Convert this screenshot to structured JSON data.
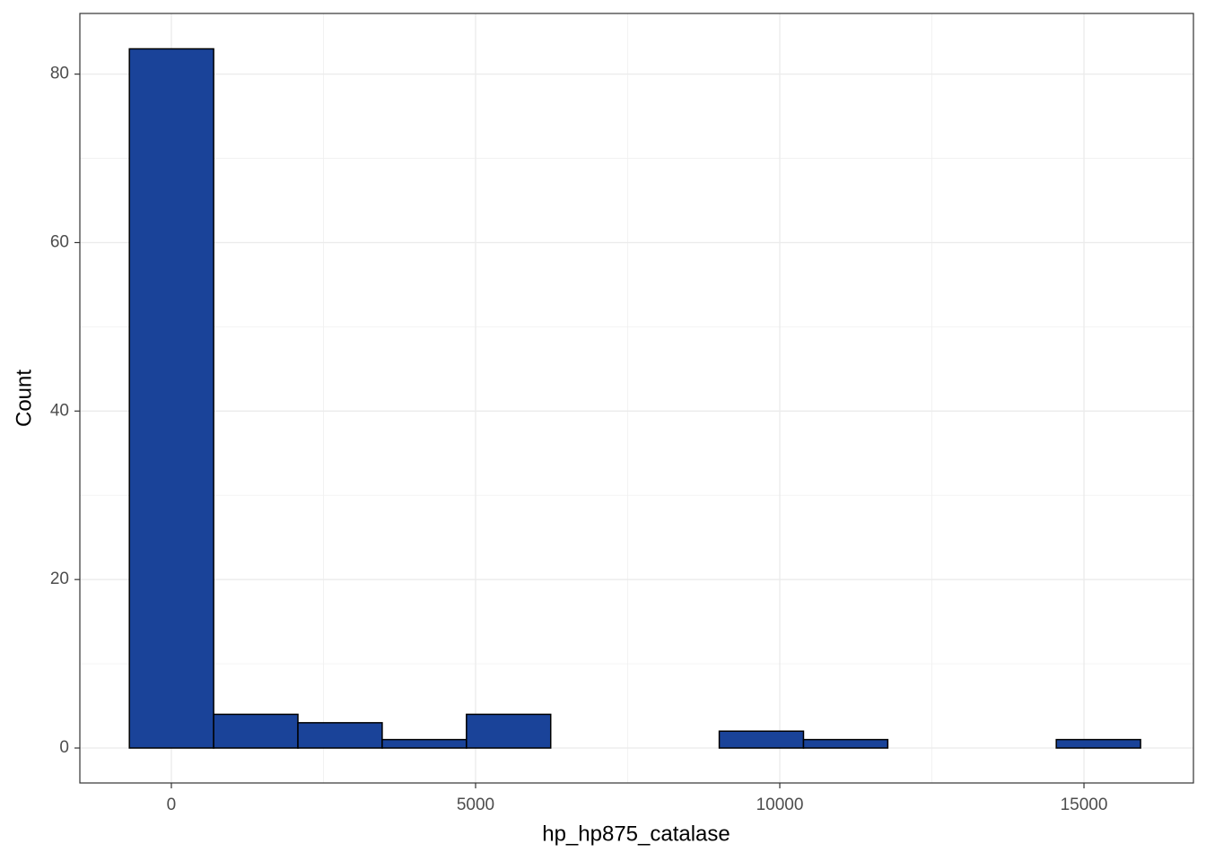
{
  "chart_data": {
    "type": "histogram",
    "x_label": "hp_hp875_catalase",
    "y_label": "Count",
    "bins": [
      -690,
      695,
      2080,
      3465,
      4850,
      6235,
      7620,
      9005,
      10390,
      11775,
      13160,
      14545,
      15930
    ],
    "values": [
      83,
      4,
      3,
      1,
      4,
      0,
      0,
      2,
      1,
      0,
      0,
      1
    ],
    "color": "#1a4399",
    "edge_color": "#000000",
    "xlim": [
      -1504,
      16799
    ],
    "ylim": [
      -4.15,
      87.2
    ],
    "xticks": [
      0,
      5000,
      10000,
      15000
    ],
    "yticks": [
      0,
      20,
      40,
      60,
      80
    ],
    "x_minor_grid": [
      2500,
      7500,
      12500
    ],
    "y_minor_grid": [
      10,
      30,
      50,
      70
    ],
    "grid": true
  }
}
